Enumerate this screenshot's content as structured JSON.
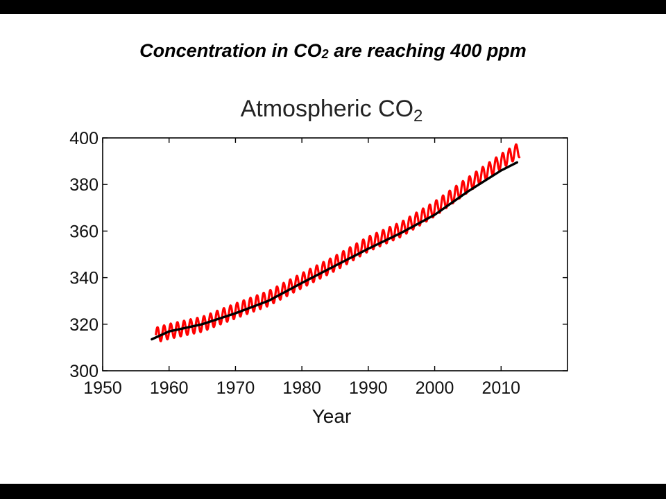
{
  "slide": {
    "title_pre": "Concentration in CO",
    "title_sub": "2",
    "title_post": " are reaching 400 ppm"
  },
  "chart_data": {
    "type": "line",
    "title_main": "Atmospheric CO",
    "title_sub": "2",
    "xlabel": "Year",
    "ylabel": "",
    "xlim": [
      1950,
      2020
    ],
    "ylim": [
      300,
      400
    ],
    "xticks": [
      1950,
      1960,
      1970,
      1980,
      1990,
      2000,
      2010
    ],
    "yticks": [
      300,
      320,
      340,
      360,
      380,
      400
    ],
    "grid": false,
    "legend": "none",
    "colors": {
      "monthly": "#ff0000",
      "trend": "#000000"
    },
    "series": [
      {
        "kind": "monthly",
        "amplitude": 3.2,
        "x": [
          1958,
          1960,
          1965,
          1970,
          1975,
          1980,
          1985,
          1990,
          1995,
          2000,
          2005,
          2010,
          2012.8
        ],
        "y": [
          315.3,
          316.9,
          320.0,
          325.7,
          331.1,
          338.7,
          346.1,
          354.4,
          360.8,
          369.5,
          379.8,
          389.9,
          395.0
        ]
      },
      {
        "kind": "trend",
        "x": [
          1957.4,
          1960,
          1965,
          1970,
          1975,
          1980,
          1985,
          1990,
          1995,
          2000,
          2005,
          2010,
          2012.4
        ],
        "y": [
          313.5,
          316.9,
          320.0,
          324.7,
          330.1,
          337.7,
          345.1,
          352.4,
          359.3,
          367.0,
          377.0,
          386.0,
          389.5
        ]
      }
    ]
  }
}
